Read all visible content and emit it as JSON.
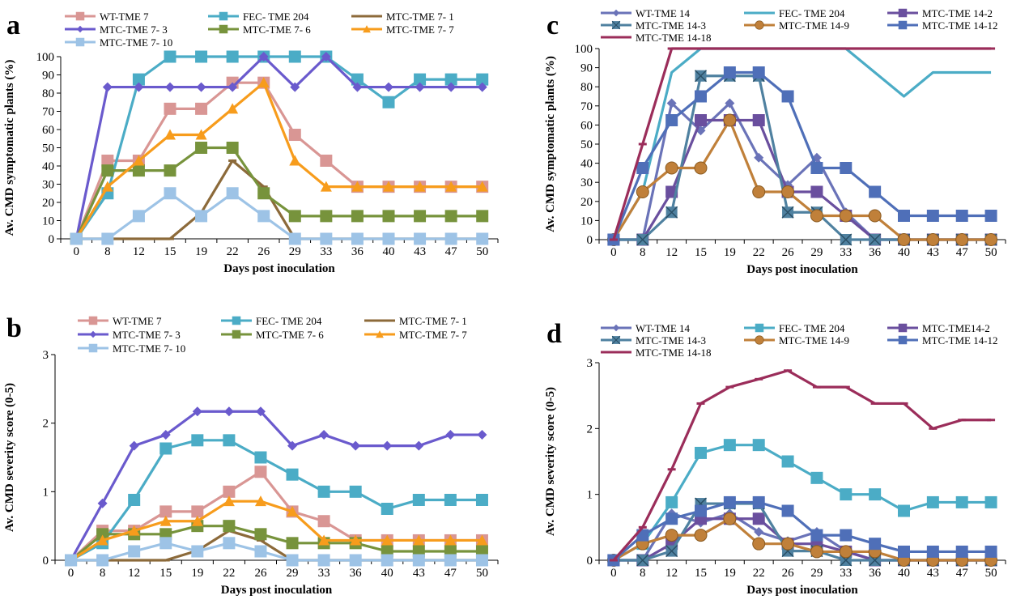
{
  "figure": {
    "panels": [
      "a",
      "b",
      "c",
      "d"
    ]
  },
  "chart_data": [
    {
      "panel": "a",
      "type": "line",
      "categories": [
        "0",
        "8",
        "12",
        "15",
        "19",
        "22",
        "26",
        "29",
        "33",
        "36",
        "40",
        "43",
        "47",
        "50"
      ],
      "xlabel": "Days post inoculation",
      "ylabel": "Av. CMD symptomatic plants (%)",
      "ylim": [
        0,
        100
      ],
      "yticks": [
        0,
        10,
        20,
        30,
        40,
        50,
        60,
        70,
        80,
        90,
        100
      ],
      "grid": false,
      "legend_position": "top",
      "series": [
        {
          "name": "WT-TME 7",
          "color": "#d99694",
          "marker": "square",
          "values": [
            0,
            42.9,
            42.9,
            71.4,
            71.4,
            85.7,
            85.7,
            57.1,
            42.9,
            28.6,
            28.6,
            28.6,
            28.6,
            28.6
          ]
        },
        {
          "name": "FEC- TME 204",
          "color": "#4bacc6",
          "marker": "square",
          "values": [
            0,
            25,
            87.5,
            100,
            100,
            100,
            100,
            100,
            100,
            87.5,
            75,
            87.5,
            87.5,
            87.5
          ]
        },
        {
          "name": "MTC-TME 7- 1",
          "color": "#8c6a3a",
          "marker": "dash",
          "values": [
            0,
            0,
            0,
            0,
            14.3,
            42.9,
            28.6,
            0,
            0,
            0,
            0,
            0,
            0,
            0
          ]
        },
        {
          "name": "MTC-TME 7- 3",
          "color": "#6a5acd",
          "marker": "diamond",
          "values": [
            0,
            83.3,
            83.3,
            83.3,
            83.3,
            83.3,
            100,
            83.3,
            100,
            83.3,
            83.3,
            83.3,
            83.3,
            83.3
          ]
        },
        {
          "name": "MTC-TME 7- 6",
          "color": "#77933c",
          "marker": "square",
          "values": [
            0,
            37.5,
            37.5,
            37.5,
            50,
            50,
            25,
            12.5,
            12.5,
            12.5,
            12.5,
            12.5,
            12.5,
            12.5
          ]
        },
        {
          "name": "MTC-TME 7- 7",
          "color": "#f79c1c",
          "marker": "triangle",
          "values": [
            0,
            28.6,
            42.9,
            57.1,
            57.1,
            71.4,
            85.7,
            42.9,
            28.6,
            28.6,
            28.6,
            28.6,
            28.6,
            28.6
          ]
        },
        {
          "name": "MTC-TME 7- 10",
          "color": "#9dc3e6",
          "marker": "square",
          "values": [
            0,
            0,
            12.5,
            25,
            12.5,
            25,
            12.5,
            0,
            0,
            0,
            0,
            0,
            0,
            0
          ]
        }
      ]
    },
    {
      "panel": "b",
      "type": "line",
      "categories": [
        "0",
        "8",
        "12",
        "15",
        "19",
        "22",
        "26",
        "29",
        "33",
        "36",
        "40",
        "43",
        "47",
        "50"
      ],
      "xlabel": "Days post inoculation",
      "ylabel": "Av.  CMD severity score (0-5)",
      "ylim": [
        0,
        3
      ],
      "yticks": [
        0,
        1,
        2,
        3
      ],
      "grid": false,
      "legend_position": "top",
      "series": [
        {
          "name": "WT-TME 7",
          "color": "#d99694",
          "marker": "square",
          "values": [
            0,
            0.43,
            0.43,
            0.71,
            0.71,
            1.0,
            1.29,
            0.71,
            0.57,
            0.29,
            0.29,
            0.29,
            0.29,
            0.29
          ]
        },
        {
          "name": "FEC- TME 204",
          "color": "#4bacc6",
          "marker": "square",
          "values": [
            0,
            0.25,
            0.88,
            1.63,
            1.75,
            1.75,
            1.5,
            1.25,
            1.0,
            1.0,
            0.75,
            0.88,
            0.88,
            0.88
          ]
        },
        {
          "name": "MTC-TME 7- 1",
          "color": "#8c6a3a",
          "marker": "dash",
          "values": [
            0,
            0,
            0,
            0,
            0.14,
            0.43,
            0.29,
            0,
            0,
            0,
            0,
            0,
            0,
            0
          ]
        },
        {
          "name": "MTC-TME 7- 3",
          "color": "#6a5acd",
          "marker": "diamond",
          "values": [
            0,
            0.83,
            1.67,
            1.83,
            2.17,
            2.17,
            2.17,
            1.67,
            1.83,
            1.67,
            1.67,
            1.67,
            1.83,
            1.83
          ]
        },
        {
          "name": "MTC-TME 7- 6",
          "color": "#77933c",
          "marker": "square",
          "values": [
            0,
            0.38,
            0.38,
            0.38,
            0.5,
            0.5,
            0.38,
            0.25,
            0.25,
            0.25,
            0.13,
            0.13,
            0.13,
            0.13
          ]
        },
        {
          "name": "MTC-TME 7- 7",
          "color": "#f79c1c",
          "marker": "triangle",
          "values": [
            0,
            0.29,
            0.43,
            0.57,
            0.57,
            0.86,
            0.86,
            0.71,
            0.29,
            0.29,
            0.29,
            0.29,
            0.29,
            0.29
          ]
        },
        {
          "name": "MTC-TME 7- 10",
          "color": "#9dc3e6",
          "marker": "square",
          "values": [
            0,
            0,
            0.13,
            0.25,
            0.13,
            0.25,
            0.13,
            0,
            0,
            0,
            0,
            0,
            0,
            0
          ]
        }
      ]
    },
    {
      "panel": "c",
      "type": "line",
      "categories": [
        "0",
        "8",
        "12",
        "15",
        "19",
        "22",
        "26",
        "29",
        "33",
        "36",
        "40",
        "43",
        "47",
        "50"
      ],
      "xlabel": "Days post inoculation",
      "ylabel": "Av. CMD symptomatic plants (%)",
      "ylim": [
        0,
        100
      ],
      "yticks": [
        0,
        10,
        20,
        30,
        40,
        50,
        60,
        70,
        80,
        90,
        100
      ],
      "grid": false,
      "legend_position": "top",
      "series": [
        {
          "name": "WT-TME 14",
          "color": "#6a73b8",
          "marker": "diamond",
          "values": [
            0,
            0,
            71.4,
            57.1,
            71.4,
            42.9,
            28.6,
            42.9,
            14.3,
            0,
            0,
            0,
            0,
            0
          ]
        },
        {
          "name": "FEC- TME 204",
          "color": "#4bacc6",
          "marker": "none",
          "values": [
            0,
            25,
            87.5,
            100,
            100,
            100,
            100,
            100,
            100,
            87.5,
            75,
            87.5,
            87.5,
            87.5
          ]
        },
        {
          "name": "MTC-TME 14-2",
          "color": "#6a4f9e",
          "marker": "square",
          "values": [
            0,
            0,
            25,
            62.5,
            62.5,
            62.5,
            25,
            25,
            12.5,
            0,
            0,
            0,
            0,
            0
          ]
        },
        {
          "name": "MTC-TME 14-3",
          "color": "#4f81a0",
          "marker": "cross",
          "values": [
            0,
            0,
            14.3,
            85.7,
            85.7,
            85.7,
            14.3,
            14.3,
            0,
            0,
            0,
            0,
            0,
            0
          ]
        },
        {
          "name": "MTC-TME 14-9",
          "color": "#c0803a",
          "marker": "circle",
          "values": [
            0,
            25,
            37.5,
            37.5,
            62.5,
            25,
            25,
            12.5,
            12.5,
            12.5,
            0,
            0,
            0,
            0
          ]
        },
        {
          "name": "MTC-TME 14-12",
          "color": "#4f6fb8",
          "marker": "square",
          "values": [
            0,
            37.5,
            62.5,
            75,
            87.5,
            87.5,
            75,
            37.5,
            37.5,
            25,
            12.5,
            12.5,
            12.5,
            12.5
          ]
        },
        {
          "name": "MTC-TME 14-18",
          "color": "#9b2d5a",
          "marker": "dash",
          "values": [
            0,
            50,
            100,
            100,
            100,
            100,
            100,
            100,
            100,
            100,
            100,
            100,
            100,
            100
          ]
        }
      ]
    },
    {
      "panel": "d",
      "type": "line",
      "categories": [
        "0",
        "8",
        "12",
        "15",
        "19",
        "22",
        "26",
        "29",
        "33",
        "36",
        "40",
        "43",
        "47",
        "50"
      ],
      "xlabel": "Days post inoculation",
      "ylabel": "Av.  CMD severity score (0-5)",
      "ylim": [
        0,
        3
      ],
      "yticks": [
        0,
        1,
        2,
        3
      ],
      "grid": false,
      "legend_position": "top",
      "series": [
        {
          "name": "WT-TME 14",
          "color": "#6a73b8",
          "marker": "diamond",
          "values": [
            0,
            0,
            0.71,
            0.57,
            0.71,
            0.43,
            0.29,
            0.43,
            0.14,
            0,
            0,
            0,
            0,
            0
          ]
        },
        {
          "name": "FEC- TME 204",
          "color": "#4bacc6",
          "marker": "square",
          "values": [
            0,
            0.25,
            0.88,
            1.63,
            1.75,
            1.75,
            1.5,
            1.25,
            1.0,
            1.0,
            0.75,
            0.88,
            0.88,
            0.88
          ]
        },
        {
          "name": "MTC-TME14-2",
          "color": "#6a4f9e",
          "marker": "square",
          "values": [
            0,
            0,
            0.25,
            0.63,
            0.63,
            0.63,
            0.25,
            0.25,
            0.13,
            0,
            0,
            0,
            0,
            0
          ]
        },
        {
          "name": "MTC-TME 14-3",
          "color": "#4f81a0",
          "marker": "cross",
          "values": [
            0,
            0,
            0.14,
            0.86,
            0.86,
            0.86,
            0.14,
            0.14,
            0,
            0,
            0,
            0,
            0,
            0
          ]
        },
        {
          "name": "MTC-TME 14-9",
          "color": "#c0803a",
          "marker": "circle",
          "values": [
            0,
            0.25,
            0.38,
            0.38,
            0.63,
            0.25,
            0.25,
            0.13,
            0.13,
            0.13,
            0,
            0,
            0,
            0
          ]
        },
        {
          "name": "MTC-TME 14-12",
          "color": "#4f6fb8",
          "marker": "square",
          "values": [
            0,
            0.38,
            0.63,
            0.75,
            0.88,
            0.88,
            0.75,
            0.38,
            0.38,
            0.25,
            0.13,
            0.13,
            0.13,
            0.13
          ]
        },
        {
          "name": "MTC-TME 14-18",
          "color": "#9b2d5a",
          "marker": "dash",
          "values": [
            0,
            0.5,
            1.38,
            2.38,
            2.63,
            2.75,
            2.88,
            2.63,
            2.63,
            2.38,
            2.38,
            2.0,
            2.13,
            2.13
          ]
        }
      ]
    }
  ]
}
